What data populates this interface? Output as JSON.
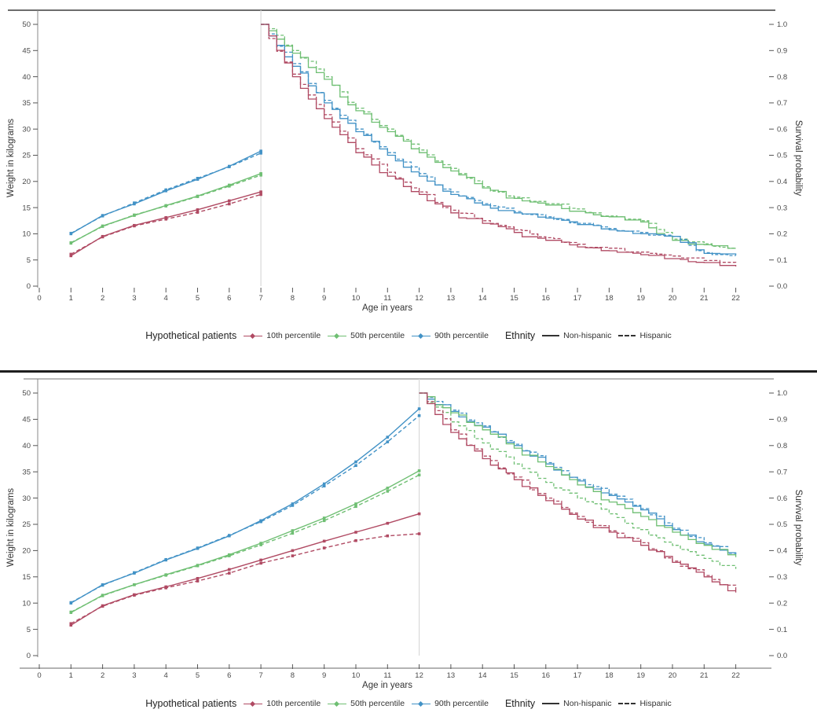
{
  "colors": {
    "p10": "#b04a63",
    "p50": "#6fbf73",
    "p90": "#4292c6",
    "ethnicity_line": "#333333",
    "axis_text": "#4a4a4a",
    "transition_line": "#d9d9d9",
    "top_panel_border": "#3d3d3d",
    "bottom_panel_border": "#909090",
    "axis_line": "#888888",
    "separator": "#1e1e1e"
  },
  "axes": {
    "left_label": "Weight in kilograms",
    "right_label": "Survival probability",
    "x_label": "Age in years"
  },
  "legend": {
    "patients_label": "Hypothetical patients",
    "items": [
      {
        "label": "10th percentile",
        "color": "p10"
      },
      {
        "label": "50th percentile",
        "color": "p50"
      },
      {
        "label": "90th percentile",
        "color": "p90"
      }
    ],
    "ethnicity_label": "Ethnity",
    "non_hispanic_label": "Non-hispanic",
    "hispanic_label": "Hispanic"
  },
  "chart_data": [
    {
      "type": "line",
      "panel": "top",
      "description": "Weight growth curves to age 7 then Kaplan-Meier style survival curves from age 7 to 22",
      "transition_age": 7,
      "x_axis": {
        "label": "Age in years",
        "ticks": [
          0,
          1,
          2,
          3,
          4,
          5,
          6,
          7,
          8,
          9,
          10,
          11,
          12,
          13,
          14,
          15,
          16,
          17,
          18,
          19,
          20,
          21,
          22
        ],
        "range": [
          0,
          22.8
        ]
      },
      "left_axis": {
        "label": "Weight in kilograms",
        "ticks": [
          0,
          5,
          10,
          15,
          20,
          25,
          30,
          35,
          40,
          45,
          50
        ],
        "range": [
          0,
          50
        ]
      },
      "right_axis": {
        "label": "Survival probability",
        "ticks": [
          0.0,
          0.1,
          0.2,
          0.3,
          0.4,
          0.5,
          0.6,
          0.7,
          0.8,
          0.9,
          1.0
        ],
        "range": [
          0,
          1
        ]
      },
      "weight_series": [
        {
          "name": "90th percentile Non-hispanic",
          "color": "p90",
          "dashed": false,
          "x": [
            1,
            2,
            3,
            4,
            5,
            6,
            7
          ],
          "y": [
            10.0,
            13.5,
            15.7,
            18.2,
            20.4,
            22.9,
            25.8
          ]
        },
        {
          "name": "90th percentile Hispanic",
          "color": "p90",
          "dashed": true,
          "x": [
            1,
            2,
            3,
            4,
            5,
            6,
            7
          ],
          "y": [
            10.1,
            13.4,
            15.9,
            18.4,
            20.6,
            22.8,
            25.4
          ]
        },
        {
          "name": "50th percentile Non-hispanic",
          "color": "p50",
          "dashed": false,
          "x": [
            1,
            2,
            3,
            4,
            5,
            6,
            7
          ],
          "y": [
            8.2,
            11.5,
            13.5,
            15.4,
            17.2,
            19.3,
            21.5
          ]
        },
        {
          "name": "50th percentile Hispanic",
          "color": "p50",
          "dashed": true,
          "x": [
            1,
            2,
            3,
            4,
            5,
            6,
            7
          ],
          "y": [
            8.3,
            11.4,
            13.6,
            15.3,
            17.1,
            19.1,
            21.2
          ]
        },
        {
          "name": "10th percentile Non-hispanic",
          "color": "p10",
          "dashed": false,
          "x": [
            1,
            2,
            3,
            4,
            5,
            6,
            7
          ],
          "y": [
            5.8,
            9.5,
            11.6,
            13.1,
            14.6,
            16.3,
            18.0
          ]
        },
        {
          "name": "10th percentile Hispanic",
          "color": "p10",
          "dashed": true,
          "x": [
            1,
            2,
            3,
            4,
            5,
            6,
            7
          ],
          "y": [
            6.1,
            9.4,
            11.5,
            12.8,
            14.1,
            15.7,
            17.5
          ]
        }
      ],
      "survival_series": [
        {
          "name": "50th percentile Non-hispanic",
          "color": "p50",
          "dashed": false,
          "x": [
            7,
            8,
            9,
            10,
            11,
            12,
            13,
            14,
            15,
            16,
            17,
            18,
            19,
            20,
            21,
            22
          ],
          "y": [
            1.0,
            0.89,
            0.79,
            0.67,
            0.59,
            0.51,
            0.44,
            0.375,
            0.335,
            0.31,
            0.29,
            0.265,
            0.245,
            0.175,
            0.158,
            0.147
          ]
        },
        {
          "name": "50th percentile Hispanic",
          "color": "p50",
          "dashed": true,
          "x": [
            7,
            8,
            9,
            10,
            11,
            12,
            13,
            14,
            15,
            16,
            17,
            18,
            19,
            20,
            21,
            22
          ],
          "y": [
            1.0,
            0.9,
            0.8,
            0.68,
            0.6,
            0.52,
            0.45,
            0.38,
            0.34,
            0.315,
            0.295,
            0.27,
            0.25,
            0.18,
            0.162,
            0.15
          ]
        },
        {
          "name": "90th percentile Non-hispanic",
          "color": "p90",
          "dashed": false,
          "x": [
            7,
            8,
            9,
            10,
            11,
            12,
            13,
            14,
            15,
            16,
            17,
            18,
            19,
            20,
            21,
            22
          ],
          "y": [
            1.0,
            0.84,
            0.7,
            0.59,
            0.5,
            0.42,
            0.35,
            0.31,
            0.28,
            0.26,
            0.235,
            0.215,
            0.2,
            0.19,
            0.125,
            0.118
          ]
        },
        {
          "name": "90th percentile Hispanic",
          "color": "p90",
          "dashed": true,
          "x": [
            7,
            8,
            9,
            10,
            11,
            12,
            13,
            14,
            15,
            16,
            17,
            18,
            19,
            20,
            21,
            22
          ],
          "y": [
            1.0,
            0.85,
            0.71,
            0.6,
            0.51,
            0.43,
            0.36,
            0.315,
            0.285,
            0.265,
            0.24,
            0.22,
            0.205,
            0.19,
            0.128,
            0.12
          ]
        },
        {
          "name": "10th percentile Non-hispanic",
          "color": "p10",
          "dashed": false,
          "x": [
            7,
            8,
            9,
            10,
            11,
            12,
            13,
            14,
            15,
            16,
            17,
            18,
            19,
            20,
            21,
            22
          ],
          "y": [
            1.0,
            0.8,
            0.64,
            0.51,
            0.42,
            0.35,
            0.28,
            0.24,
            0.205,
            0.175,
            0.15,
            0.135,
            0.12,
            0.105,
            0.09,
            0.075
          ]
        },
        {
          "name": "10th percentile Hispanic",
          "color": "p10",
          "dashed": true,
          "x": [
            7,
            8,
            9,
            10,
            11,
            12,
            13,
            14,
            15,
            16,
            17,
            18,
            19,
            20,
            21,
            22
          ],
          "y": [
            1.0,
            0.81,
            0.655,
            0.525,
            0.435,
            0.36,
            0.29,
            0.25,
            0.215,
            0.185,
            0.16,
            0.145,
            0.13,
            0.115,
            0.098,
            0.083
          ]
        }
      ]
    },
    {
      "type": "line",
      "panel": "bottom",
      "description": "Weight growth curves to age 12 then Kaplan-Meier style survival curves from age 12 to 22",
      "transition_age": 12,
      "x_axis": {
        "label": "Age in years",
        "ticks": [
          0,
          1,
          2,
          3,
          4,
          5,
          6,
          7,
          8,
          9,
          10,
          11,
          12,
          13,
          14,
          15,
          16,
          17,
          18,
          19,
          20,
          21,
          22
        ],
        "range": [
          0,
          22.8
        ]
      },
      "left_axis": {
        "label": "Weight in kilograms",
        "ticks": [
          0,
          5,
          10,
          15,
          20,
          25,
          30,
          35,
          40,
          45,
          50
        ],
        "range": [
          0,
          50
        ]
      },
      "right_axis": {
        "label": "Survival probability",
        "ticks": [
          0.0,
          0.1,
          0.2,
          0.3,
          0.4,
          0.5,
          0.6,
          0.7,
          0.8,
          0.9,
          1.0
        ],
        "range": [
          0,
          1
        ]
      },
      "weight_series": [
        {
          "name": "90th percentile Non-hispanic",
          "color": "p90",
          "dashed": false,
          "x": [
            1,
            2,
            3,
            4,
            5,
            6,
            7,
            8,
            9,
            10,
            11,
            12
          ],
          "y": [
            10.0,
            13.5,
            15.7,
            18.2,
            20.4,
            22.8,
            25.7,
            28.9,
            32.7,
            36.9,
            41.6,
            47.0
          ]
        },
        {
          "name": "90th percentile Hispanic",
          "color": "p90",
          "dashed": true,
          "x": [
            1,
            2,
            3,
            4,
            5,
            6,
            7,
            8,
            9,
            10,
            11,
            12
          ],
          "y": [
            10.1,
            13.4,
            15.8,
            18.3,
            20.5,
            22.9,
            25.5,
            28.6,
            32.3,
            36.2,
            40.7,
            45.7
          ]
        },
        {
          "name": "50th percentile Non-hispanic",
          "color": "p50",
          "dashed": false,
          "x": [
            1,
            2,
            3,
            4,
            5,
            6,
            7,
            8,
            9,
            10,
            11,
            12
          ],
          "y": [
            8.2,
            11.5,
            13.5,
            15.4,
            17.2,
            19.2,
            21.4,
            23.8,
            26.2,
            28.9,
            31.9,
            35.2
          ]
        },
        {
          "name": "50th percentile Hispanic",
          "color": "p50",
          "dashed": true,
          "x": [
            1,
            2,
            3,
            4,
            5,
            6,
            7,
            8,
            9,
            10,
            11,
            12
          ],
          "y": [
            8.3,
            11.4,
            13.5,
            15.3,
            17.1,
            19.0,
            21.1,
            23.3,
            25.7,
            28.4,
            31.3,
            34.4
          ]
        },
        {
          "name": "10th percentile Non-hispanic",
          "color": "p10",
          "dashed": false,
          "x": [
            1,
            2,
            3,
            4,
            5,
            6,
            7,
            8,
            9,
            10,
            11,
            12
          ],
          "y": [
            5.8,
            9.5,
            11.6,
            13.1,
            14.7,
            16.4,
            18.2,
            20.0,
            21.8,
            23.5,
            25.2,
            27.0
          ]
        },
        {
          "name": "10th percentile Hispanic",
          "color": "p10",
          "dashed": true,
          "x": [
            1,
            2,
            3,
            4,
            5,
            6,
            7,
            8,
            9,
            10,
            11,
            12
          ],
          "y": [
            6.1,
            9.4,
            11.5,
            12.9,
            14.2,
            15.7,
            17.6,
            19.0,
            20.5,
            21.9,
            22.8,
            23.2
          ]
        }
      ],
      "survival_series": [
        {
          "name": "90th percentile Non-hispanic",
          "color": "p90",
          "dashed": false,
          "x": [
            12,
            13,
            14,
            15,
            16,
            17,
            18,
            19,
            20,
            21,
            22
          ],
          "y": [
            1.0,
            0.93,
            0.87,
            0.8,
            0.73,
            0.665,
            0.61,
            0.555,
            0.48,
            0.425,
            0.385
          ]
        },
        {
          "name": "90th percentile Hispanic",
          "color": "p90",
          "dashed": true,
          "x": [
            12,
            13,
            14,
            15,
            16,
            17,
            18,
            19,
            20,
            21,
            22
          ],
          "y": [
            1.0,
            0.935,
            0.875,
            0.805,
            0.735,
            0.67,
            0.615,
            0.56,
            0.485,
            0.43,
            0.388
          ]
        },
        {
          "name": "50th percentile Non-hispanic",
          "color": "p50",
          "dashed": false,
          "x": [
            12,
            13,
            14,
            15,
            16,
            17,
            18,
            19,
            20,
            21,
            22
          ],
          "y": [
            1.0,
            0.925,
            0.86,
            0.79,
            0.72,
            0.65,
            0.585,
            0.53,
            0.47,
            0.42,
            0.375
          ]
        },
        {
          "name": "50th percentile Hispanic",
          "color": "p50",
          "dashed": true,
          "x": [
            12,
            13,
            14,
            15,
            16,
            17,
            18,
            19,
            20,
            21,
            22
          ],
          "y": [
            1.0,
            0.89,
            0.81,
            0.73,
            0.66,
            0.6,
            0.54,
            0.48,
            0.42,
            0.37,
            0.33
          ]
        },
        {
          "name": "10th percentile Non-hispanic",
          "color": "p10",
          "dashed": false,
          "x": [
            12,
            13,
            14,
            15,
            16,
            17,
            18,
            19,
            20,
            21,
            22
          ],
          "y": [
            1.0,
            0.85,
            0.75,
            0.67,
            0.59,
            0.52,
            0.47,
            0.42,
            0.355,
            0.3,
            0.24
          ]
        },
        {
          "name": "10th percentile Hispanic",
          "color": "p10",
          "dashed": true,
          "x": [
            12,
            13,
            14,
            15,
            16,
            17,
            18,
            19,
            20,
            21,
            22
          ],
          "y": [
            1.0,
            0.86,
            0.76,
            0.68,
            0.6,
            0.53,
            0.475,
            0.43,
            0.36,
            0.305,
            0.245
          ]
        }
      ]
    }
  ]
}
